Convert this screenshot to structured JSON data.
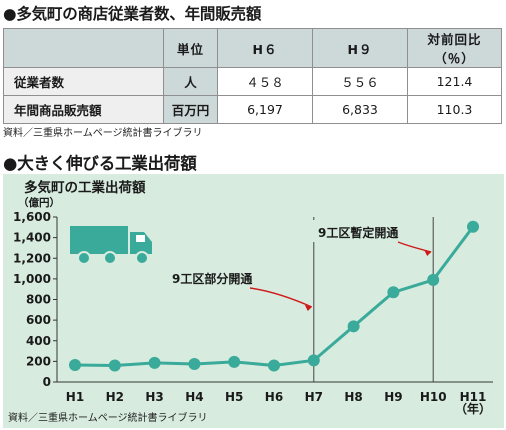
{
  "section1": {
    "title": "●多気町の商店従業者数、年間販売額",
    "headers": [
      "",
      "単位",
      "H６",
      "H９",
      "対前回比（％）"
    ],
    "rows": [
      {
        "label": "従業者数",
        "unit": "人",
        "h6": "４５８",
        "h9": "５５６",
        "ratio": "121.4"
      },
      {
        "label": "年間商品販売額",
        "unit": "百万円",
        "h6": "6,197",
        "h9": "6,833",
        "ratio": "110.3"
      }
    ],
    "source": "資料／三重県ホームページ統計書ライブラリ"
  },
  "section2": {
    "title": "●大きく伸びる工業出荷額",
    "chart_title": "多気町の工業出荷額",
    "unit_label": "（億円）",
    "x_unit_label": "（年）",
    "source": "資料／三重県ホームページ統計書ライブラリ"
  },
  "colors": {
    "line": "#3aaa9a",
    "panel": "#d7ecdf",
    "table_header": "#cdd9d8",
    "annotation_arrow": "#d01a1a",
    "truck": "#3aaa9a"
  },
  "icons": {
    "truck": "truck-icon"
  },
  "chart_data": {
    "type": "line",
    "title": "多気町の工業出荷額",
    "ylabel": "（億円）",
    "xlabel": "（年）",
    "categories": [
      "H1",
      "H2",
      "H3",
      "H4",
      "H5",
      "H6",
      "H7",
      "H8",
      "H9",
      "H10",
      "H11"
    ],
    "series": [
      {
        "values": [
          165,
          160,
          185,
          175,
          195,
          160,
          210,
          540,
          870,
          990,
          1505
        ]
      }
    ],
    "ylim": [
      0,
      1600
    ],
    "yticks": [
      0,
      200,
      400,
      600,
      800,
      1000,
      1200,
      1400,
      1600
    ],
    "ytick_labels": [
      "0",
      "200",
      "400",
      "600",
      "800",
      "1,000",
      "1,200",
      "1,400",
      "1,600"
    ],
    "grid": false,
    "annotations": [
      {
        "text": "9工区部分開通",
        "x": "H7"
      },
      {
        "text": "9工区暫定開通",
        "x": "H10"
      }
    ]
  }
}
